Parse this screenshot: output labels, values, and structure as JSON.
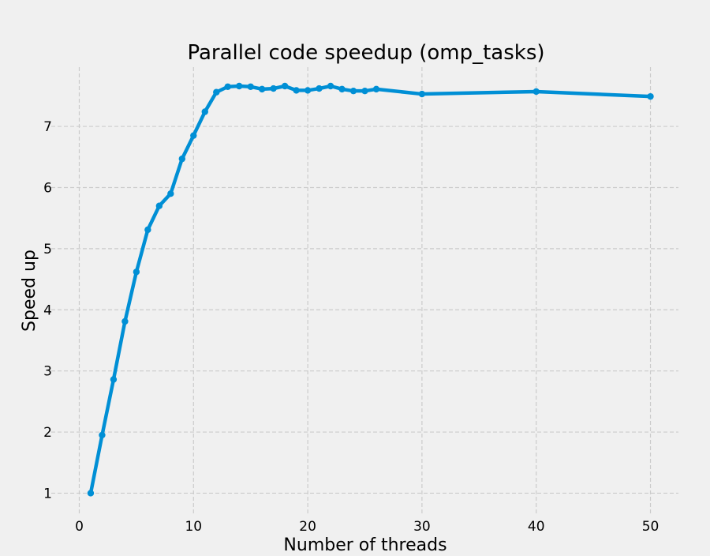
{
  "chart_data": {
    "type": "line",
    "title": "Parallel code speedup (omp_tasks)",
    "xlabel": "Number of threads",
    "ylabel": "Speed up",
    "xlim": [
      -2.45,
      52.45
    ],
    "ylim": [
      0.67,
      7.97
    ],
    "x_ticks": [
      0,
      10,
      20,
      30,
      40,
      50
    ],
    "y_ticks": [
      1,
      2,
      3,
      4,
      5,
      6,
      7
    ],
    "grid": true,
    "style": "fivethirtyeight",
    "series_color": "#008fd5",
    "x": [
      1,
      2,
      3,
      4,
      5,
      6,
      7,
      8,
      9,
      10,
      11,
      12,
      13,
      14,
      15,
      16,
      17,
      18,
      19,
      20,
      21,
      22,
      23,
      24,
      25,
      26,
      30,
      40,
      50
    ],
    "y": [
      1.0,
      1.95,
      2.86,
      3.81,
      4.62,
      5.31,
      5.7,
      5.9,
      6.47,
      6.85,
      7.24,
      7.56,
      7.65,
      7.66,
      7.65,
      7.61,
      7.62,
      7.66,
      7.59,
      7.59,
      7.62,
      7.66,
      7.61,
      7.58,
      7.58,
      7.61,
      7.53,
      7.57,
      7.49
    ]
  }
}
